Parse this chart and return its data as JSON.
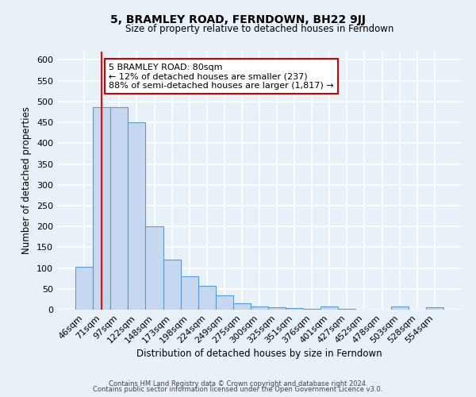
{
  "title": "5, BRAMLEY ROAD, FERNDOWN, BH22 9JJ",
  "subtitle": "Size of property relative to detached houses in Ferndown",
  "xlabel": "Distribution of detached houses by size in Ferndown",
  "ylabel": "Number of detached properties",
  "bin_labels": [
    "46sqm",
    "71sqm",
    "97sqm",
    "122sqm",
    "148sqm",
    "173sqm",
    "198sqm",
    "224sqm",
    "249sqm",
    "275sqm",
    "300sqm",
    "325sqm",
    "351sqm",
    "376sqm",
    "401sqm",
    "427sqm",
    "452sqm",
    "478sqm",
    "503sqm",
    "528sqm",
    "554sqm"
  ],
  "bar_values": [
    103,
    487,
    487,
    450,
    200,
    120,
    80,
    57,
    35,
    15,
    8,
    5,
    3,
    2,
    8,
    2,
    0,
    0,
    8,
    0,
    5
  ],
  "bar_color": "#c5d8f0",
  "bar_edge_color": "#5b9bd5",
  "red_line_x": 1,
  "property_label": "5 BRAMLEY ROAD: 80sqm",
  "annotation_line1": "← 12% of detached houses are smaller (237)",
  "annotation_line2": "88% of semi-detached houses are larger (1,817) →",
  "annotation_box_color": "#ffffff",
  "annotation_box_edge": "#cc0000",
  "ylim": [
    0,
    620
  ],
  "yticks": [
    0,
    50,
    100,
    150,
    200,
    250,
    300,
    350,
    400,
    450,
    500,
    550,
    600
  ],
  "footer1": "Contains HM Land Registry data © Crown copyright and database right 2024.",
  "footer2": "Contains public sector information licensed under the Open Government Licence v3.0.",
  "bg_color": "#e8f0f8",
  "plot_bg_color": "#e8f0f8",
  "grid_color": "#ffffff"
}
